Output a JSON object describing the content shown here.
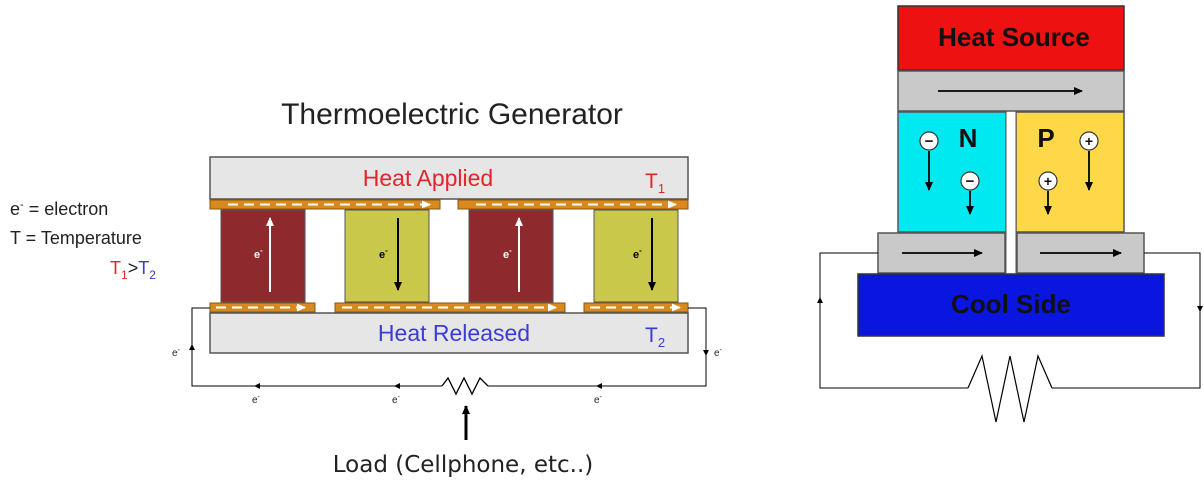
{
  "left_diagram": {
    "title": "Thermoelectric Generator",
    "top_plate_label": "Heat Applied",
    "top_temp": "T",
    "top_temp_sub": "1",
    "bottom_plate_label": "Heat Released",
    "bottom_temp": "T",
    "bottom_temp_sub": "2",
    "electron_symbol": "e",
    "electron_sup": "-",
    "legend": {
      "electron_line": " = electron",
      "temperature_line": "T = Temperature",
      "relation_T": "T",
      "relation_sub1": "1",
      "relation_gt": ">",
      "relation_sub2": "2"
    },
    "load_label": "Load (Cellphone, etc..)",
    "colors": {
      "p_leg": "#8e2a2e",
      "n_leg": "#c9c84a",
      "connector": "#d98a1e",
      "plate": "#e6e6e6",
      "heat_applied": "#e0262b",
      "heat_released": "#3b3bd8"
    }
  },
  "right_diagram": {
    "heat_source_label": "Heat Source",
    "n_label": "N",
    "p_label": "P",
    "cool_side_label": "Cool Side",
    "minus_sign": "−",
    "plus_sign": "+",
    "colors": {
      "heat_source": "#ee1111",
      "n_block": "#00e8f0",
      "p_block": "#ffd84a",
      "cool_side": "#0a16e0",
      "conductor": "#c9c9c9"
    }
  }
}
